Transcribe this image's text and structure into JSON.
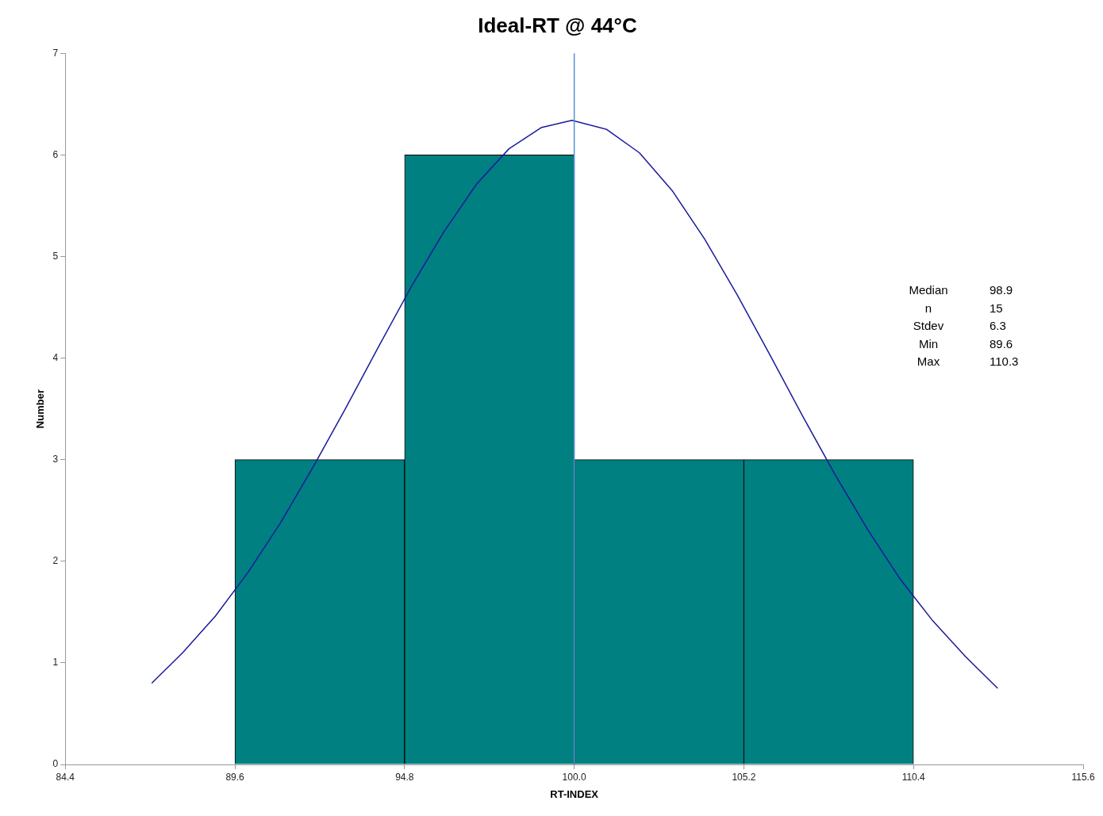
{
  "chart_data": {
    "type": "histogram",
    "title": "Ideal-RT @ 44°C",
    "xlabel": "RT-INDEX",
    "ylabel": "Number",
    "bins": [
      89.6,
      94.8,
      100.0,
      105.2,
      110.4
    ],
    "values": [
      3,
      6,
      3,
      3
    ],
    "color": "#008080",
    "series": [
      {
        "type": "line",
        "color": "#1a1a9c",
        "x": [
          87.05,
          88,
          89,
          90,
          91,
          92,
          93,
          94,
          95,
          96,
          97,
          98,
          99,
          99.93,
          101,
          102,
          103,
          104,
          105,
          106,
          107,
          108,
          109,
          110,
          111,
          112,
          112.98
        ],
        "values": [
          0.8,
          1.1,
          1.46,
          1.89,
          2.38,
          2.93,
          3.51,
          4.11,
          4.7,
          5.24,
          5.71,
          6.06,
          6.27,
          6.34,
          6.25,
          6.02,
          5.65,
          5.17,
          4.62,
          4.03,
          3.43,
          2.85,
          2.31,
          1.82,
          1.41,
          1.06,
          0.75
        ]
      }
    ],
    "ref_lines": [
      {
        "axis": "x",
        "value": 100.0,
        "color": "#5b8fd0"
      }
    ],
    "annotations": [
      "Median",
      "98.9",
      "n",
      "15",
      "Stdev",
      "6.3",
      "Min",
      "89.6",
      "Max",
      "110.3"
    ],
    "xlim": [
      84.4,
      115.6
    ],
    "xticks": [
      84.4,
      89.6,
      94.8,
      {
        "value": 100,
        "label": "100.0"
      },
      105.2,
      110.4,
      115.6
    ],
    "ylim": [
      0,
      7
    ],
    "yticks": [
      0,
      1,
      2,
      3,
      4,
      5,
      6,
      7
    ],
    "grid": false,
    "legend": false,
    "marker": "none"
  }
}
